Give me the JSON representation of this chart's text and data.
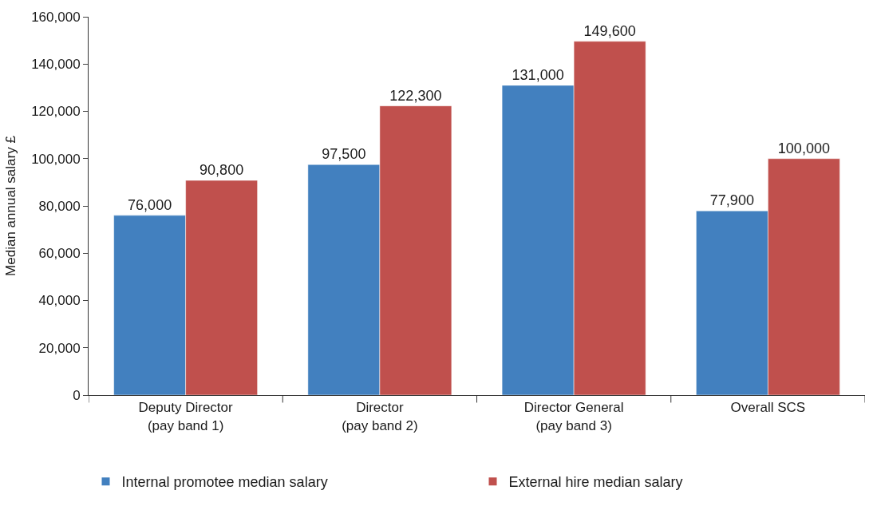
{
  "chart_data": {
    "type": "bar",
    "ylabel": "Median annual salary £",
    "categories": [
      "Deputy Director\n(pay band 1)",
      "Director\n(pay band 2)",
      "Director General\n(pay band 3)",
      "Overall SCS"
    ],
    "series": [
      {
        "name": "Internal promotee median salary",
        "color": "#4280bf",
        "values": [
          76000,
          97500,
          131000,
          77900
        ],
        "value_labels": [
          "76,000",
          "97,500",
          "131,000",
          "77,900"
        ]
      },
      {
        "name": "External hire median salary",
        "color": "#c0504d",
        "values": [
          90800,
          122300,
          149600,
          100000
        ],
        "value_labels": [
          "90,800",
          "122,300",
          "149,600",
          "100,000"
        ]
      }
    ],
    "ylim": [
      0,
      160000
    ],
    "yticks": [
      {
        "value": 0,
        "label": "0"
      },
      {
        "value": 20000,
        "label": "20,000"
      },
      {
        "value": 40000,
        "label": "40,000"
      },
      {
        "value": 60000,
        "label": "60,000"
      },
      {
        "value": 80000,
        "label": "80,000"
      },
      {
        "value": 100000,
        "label": "100,000"
      },
      {
        "value": 120000,
        "label": "120,000"
      },
      {
        "value": 140000,
        "label": "140,000"
      },
      {
        "value": 160000,
        "label": "160,000"
      }
    ],
    "legend": "bottom"
  }
}
